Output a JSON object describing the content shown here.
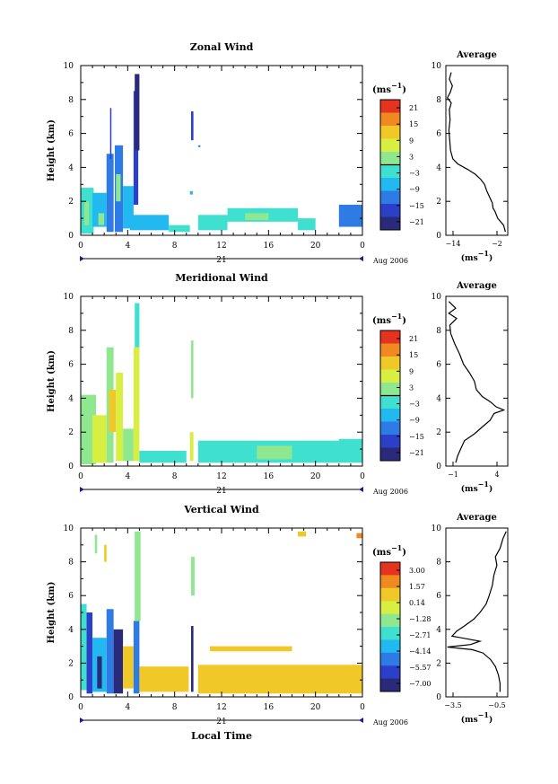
{
  "chart_data": [
    {
      "type": "heatmap",
      "title": "Zonal Wind",
      "ylabel": "Height (km)",
      "ylim": [
        0,
        10
      ],
      "xticks": [
        "0",
        "4",
        "8",
        "12",
        "16",
        "20",
        "0"
      ],
      "yticks": [
        "0",
        "2",
        "4",
        "6",
        "8",
        "10"
      ],
      "date_label": "21",
      "month_label": "Aug 2006",
      "colorbar": {
        "unit_html": "(ms<tspan baseline-shift='super' font-size='8'>−1</tspan>)",
        "ticks": [
          "21",
          "15",
          "9",
          "3",
          "−3",
          "−9",
          "−15",
          "−21"
        ],
        "zero_index": 4
      },
      "average": {
        "title": "Average",
        "xticks": [
          "−14",
          "−2"
        ],
        "xunit": "(ms−1)",
        "yticks": [
          "0",
          "2",
          "4",
          "6",
          "8",
          "10"
        ],
        "xlim": [
          -16,
          0
        ],
        "points": [
          [
            -0.6,
            0.2
          ],
          [
            -1.1,
            0.6
          ],
          [
            -2.6,
            1.0
          ],
          [
            -3.3,
            1.4
          ],
          [
            -3.8,
            1.6
          ],
          [
            -4.0,
            1.9
          ],
          [
            -4.6,
            2.2
          ],
          [
            -5.4,
            2.6
          ],
          [
            -6.0,
            3.0
          ],
          [
            -7.0,
            3.3
          ],
          [
            -8.4,
            3.6
          ],
          [
            -10.5,
            3.9
          ],
          [
            -12.9,
            4.2
          ],
          [
            -14.2,
            4.5
          ],
          [
            -14.8,
            5.0
          ],
          [
            -15.0,
            5.6
          ],
          [
            -15.2,
            6.2
          ],
          [
            -14.9,
            6.8
          ],
          [
            -15.1,
            7.4
          ],
          [
            -14.6,
            7.8
          ],
          [
            -15.6,
            8.1
          ],
          [
            -14.9,
            8.4
          ],
          [
            -14.3,
            8.8
          ],
          [
            -15.1,
            9.2
          ],
          [
            -14.6,
            9.6
          ]
        ]
      },
      "blocks": [
        {
          "t": 0.0,
          "t2": 1.1,
          "h1": 0.1,
          "h2": 2.8,
          "v": -4
        },
        {
          "t": 0.3,
          "t2": 0.7,
          "h1": 0.6,
          "h2": 2.0,
          "v": 2
        },
        {
          "t": 1.0,
          "t2": 2.2,
          "h1": 0.5,
          "h2": 2.5,
          "v": -6
        },
        {
          "t": 1.5,
          "t2": 2.0,
          "h1": 0.6,
          "h2": 1.3,
          "v": 3
        },
        {
          "t": 2.2,
          "t2": 2.8,
          "h1": 0.2,
          "h2": 4.8,
          "v": -9
        },
        {
          "t": 2.5,
          "t2": 2.6,
          "h1": 4.5,
          "h2": 7.5,
          "v": -14
        },
        {
          "t": 2.9,
          "t2": 3.6,
          "h1": 0.2,
          "h2": 5.3,
          "v": -12
        },
        {
          "t": 3.0,
          "t2": 3.4,
          "h1": 2.0,
          "h2": 3.6,
          "v": 4
        },
        {
          "t": 3.6,
          "t2": 4.5,
          "h1": 0.4,
          "h2": 2.9,
          "v": -5
        },
        {
          "t": 4.5,
          "t2": 4.9,
          "h1": 1.8,
          "h2": 8.5,
          "v": -16
        },
        {
          "t": 4.6,
          "t2": 5.0,
          "h1": 5.0,
          "h2": 9.5,
          "v": -18
        },
        {
          "t": 4.2,
          "t2": 7.5,
          "h1": 0.3,
          "h2": 1.2,
          "v": -8
        },
        {
          "t": 7.5,
          "t2": 9.3,
          "h1": 0.2,
          "h2": 0.6,
          "v": -3
        },
        {
          "t": 9.3,
          "t2": 9.55,
          "h1": 2.4,
          "h2": 2.6,
          "v": -7
        },
        {
          "t": 9.4,
          "t2": 9.6,
          "h1": 5.6,
          "h2": 7.3,
          "v": -13
        },
        {
          "t": 10.0,
          "t2": 10.2,
          "h1": 5.2,
          "h2": 5.3,
          "v": -10
        },
        {
          "t": 10.0,
          "t2": 12.5,
          "h1": 0.3,
          "h2": 1.2,
          "v": -2
        },
        {
          "t": 12.5,
          "t2": 18.5,
          "h1": 0.8,
          "h2": 1.6,
          "v": -2
        },
        {
          "t": 14.0,
          "t2": 16.0,
          "h1": 0.9,
          "h2": 1.3,
          "v": 0
        },
        {
          "t": 18.5,
          "t2": 20.0,
          "h1": 0.3,
          "h2": 1.0,
          "v": -3
        },
        {
          "t": 22.0,
          "t2": 24.0,
          "h1": 0.5,
          "h2": 1.8,
          "v": -11
        }
      ]
    },
    {
      "type": "heatmap",
      "title": "Meridional Wind",
      "ylabel": "Height (km)",
      "ylim": [
        0,
        10
      ],
      "xticks": [
        "0",
        "4",
        "8",
        "12",
        "16",
        "20",
        "0"
      ],
      "yticks": [
        "0",
        "2",
        "4",
        "6",
        "8",
        "10"
      ],
      "date_label": "21",
      "month_label": "Aug 2006",
      "colorbar": {
        "unit_html": "(ms<tspan baseline-shift='super' font-size='8'>−1</tspan>)",
        "ticks": [
          "21",
          "15",
          "9",
          "3",
          "−3",
          "−9",
          "−15",
          "−21"
        ],
        "zero_index": 4
      },
      "average": {
        "title": "Average",
        "xticks": [
          "−1",
          "4"
        ],
        "xunit": "(ms−1)",
        "yticks": [
          "0",
          "2",
          "4",
          "6",
          "8",
          "10"
        ],
        "xlim": [
          -1.3,
          5.0
        ],
        "points": [
          [
            -0.3,
            0.2
          ],
          [
            -0.1,
            0.6
          ],
          [
            0.2,
            1.0
          ],
          [
            0.6,
            1.5
          ],
          [
            1.6,
            1.9
          ],
          [
            2.4,
            2.3
          ],
          [
            3.2,
            2.7
          ],
          [
            3.6,
            3.1
          ],
          [
            4.6,
            3.3
          ],
          [
            3.8,
            3.5
          ],
          [
            3.2,
            3.8
          ],
          [
            2.4,
            4.1
          ],
          [
            1.8,
            4.5
          ],
          [
            1.6,
            5.0
          ],
          [
            1.1,
            5.5
          ],
          [
            0.5,
            6.0
          ],
          [
            0.1,
            6.6
          ],
          [
            -0.4,
            7.2
          ],
          [
            -0.8,
            7.8
          ],
          [
            -0.9,
            8.3
          ],
          [
            -0.2,
            8.7
          ],
          [
            -1.0,
            9.0
          ],
          [
            -0.3,
            9.3
          ],
          [
            -1.0,
            9.7
          ]
        ]
      },
      "blocks": [
        {
          "t": 0.0,
          "t2": 1.3,
          "h1": 0.1,
          "h2": 4.2,
          "v": 1
        },
        {
          "t": 1.0,
          "t2": 2.2,
          "h1": 0.2,
          "h2": 3.0,
          "v": 6
        },
        {
          "t": 2.2,
          "t2": 2.8,
          "h1": 0.2,
          "h2": 7.0,
          "v": 3
        },
        {
          "t": 2.4,
          "t2": 3.0,
          "h1": 2.0,
          "h2": 4.5,
          "v": 9
        },
        {
          "t": 3.0,
          "t2": 3.6,
          "h1": 0.3,
          "h2": 5.5,
          "v": 8
        },
        {
          "t": 3.6,
          "t2": 4.5,
          "h1": 0.3,
          "h2": 2.2,
          "v": 4
        },
        {
          "t": 4.5,
          "t2": 5.0,
          "h1": 0.3,
          "h2": 7.0,
          "v": 6
        },
        {
          "t": 4.6,
          "t2": 5.0,
          "h1": 7.0,
          "h2": 9.6,
          "v": -2
        },
        {
          "t": 5.0,
          "t2": 9.0,
          "h1": 0.2,
          "h2": 0.9,
          "v": -1
        },
        {
          "t": 9.3,
          "t2": 9.6,
          "h1": 0.3,
          "h2": 2.0,
          "v": 5
        },
        {
          "t": 9.4,
          "t2": 9.6,
          "h1": 4.0,
          "h2": 7.4,
          "v": 0
        },
        {
          "t": 10.0,
          "t2": 24.0,
          "h1": 0.2,
          "h2": 1.5,
          "v": -1
        },
        {
          "t": 15.0,
          "t2": 18.0,
          "h1": 0.4,
          "h2": 1.2,
          "v": 1
        },
        {
          "t": 22.0,
          "t2": 24.0,
          "h1": 0.6,
          "h2": 1.6,
          "v": -1
        }
      ]
    },
    {
      "type": "heatmap",
      "title": "Vertical Wind",
      "ylabel": "Height (km)",
      "xlabel": "Local Time",
      "ylim": [
        0,
        10
      ],
      "xticks": [
        "0",
        "4",
        "8",
        "12",
        "16",
        "20",
        "0"
      ],
      "yticks": [
        "0",
        "2",
        "4",
        "6",
        "8",
        "10"
      ],
      "date_label": "21",
      "month_label": "Aug 2006",
      "colorbar": {
        "unit_html": "(ms<tspan baseline-shift='super' font-size='8'>−1</tspan>)",
        "ticks": [
          "3.00",
          "1.57",
          "0.14",
          "−1.28",
          "−2.71",
          "−4.14",
          "−5.57",
          "−7.00"
        ],
        "zero_index": -1
      },
      "average": {
        "title": "Average",
        "xticks": [
          "−3.5",
          "−0.5"
        ],
        "xunit": "(ms−1)",
        "yticks": [
          "0",
          "2",
          "4",
          "6",
          "8",
          "10"
        ],
        "xlim": [
          -4.0,
          0.0
        ],
        "points": [
          [
            -0.5,
            0.3
          ],
          [
            -0.5,
            0.8
          ],
          [
            -0.6,
            1.3
          ],
          [
            -0.8,
            1.8
          ],
          [
            -1.1,
            2.2
          ],
          [
            -1.6,
            2.6
          ],
          [
            -2.3,
            2.8
          ],
          [
            -3.9,
            2.95
          ],
          [
            -2.4,
            3.1
          ],
          [
            -1.8,
            3.3
          ],
          [
            -3.6,
            3.6
          ],
          [
            -3.3,
            3.9
          ],
          [
            -2.8,
            4.2
          ],
          [
            -2.2,
            4.6
          ],
          [
            -1.8,
            5.0
          ],
          [
            -1.4,
            5.5
          ],
          [
            -1.2,
            6.0
          ],
          [
            -1.0,
            6.6
          ],
          [
            -0.9,
            7.2
          ],
          [
            -0.7,
            7.8
          ],
          [
            -0.8,
            8.3
          ],
          [
            -0.5,
            8.8
          ],
          [
            -0.3,
            9.4
          ],
          [
            -0.1,
            9.8
          ]
        ]
      },
      "blocks": [
        {
          "t": 0.0,
          "t2": 0.5,
          "h1": 0.4,
          "h2": 5.5,
          "v": -3.0
        },
        {
          "t": 0.5,
          "t2": 1.0,
          "h1": 0.2,
          "h2": 5.0,
          "v": -5.5
        },
        {
          "t": 1.0,
          "t2": 2.2,
          "h1": 0.3,
          "h2": 3.5,
          "v": -4.0
        },
        {
          "t": 1.4,
          "t2": 1.8,
          "h1": 0.5,
          "h2": 2.4,
          "v": -6.5
        },
        {
          "t": 2.2,
          "t2": 2.8,
          "h1": 0.2,
          "h2": 5.2,
          "v": -5.0
        },
        {
          "t": 2.8,
          "t2": 3.6,
          "h1": 0.2,
          "h2": 4.0,
          "v": -6.5
        },
        {
          "t": 3.6,
          "t2": 4.5,
          "h1": 0.5,
          "h2": 3.0,
          "v": 0.0
        },
        {
          "t": 4.5,
          "t2": 5.0,
          "h1": 0.2,
          "h2": 4.5,
          "v": -5.0
        },
        {
          "t": 4.6,
          "t2": 5.1,
          "h1": 4.5,
          "h2": 9.8,
          "v": -1.8
        },
        {
          "t": 1.2,
          "t2": 1.4,
          "h1": 8.5,
          "h2": 9.6,
          "v": -1.5
        },
        {
          "t": 2.0,
          "t2": 2.2,
          "h1": 8.0,
          "h2": 9.0,
          "v": 0.5
        },
        {
          "t": 5.0,
          "t2": 9.2,
          "h1": 0.3,
          "h2": 1.8,
          "v": 0.3
        },
        {
          "t": 9.4,
          "t2": 9.6,
          "h1": 0.3,
          "h2": 4.2,
          "v": -7.0
        },
        {
          "t": 9.4,
          "t2": 9.7,
          "h1": 6.0,
          "h2": 8.3,
          "v": -1.5
        },
        {
          "t": 10.0,
          "t2": 24.0,
          "h1": 0.2,
          "h2": 1.9,
          "v": 0.4
        },
        {
          "t": 11.0,
          "t2": 18.0,
          "h1": 2.7,
          "h2": 3.0,
          "v": 0.2
        },
        {
          "t": 18.5,
          "t2": 19.2,
          "h1": 9.5,
          "h2": 9.8,
          "v": 0.8
        },
        {
          "t": 23.5,
          "t2": 24.0,
          "h1": 9.4,
          "h2": 9.7,
          "v": 1.2
        }
      ]
    }
  ],
  "colors": {
    "scale": [
      "#2a2a7a",
      "#2c3fc8",
      "#2e7be6",
      "#22b8f0",
      "#3fe0d0",
      "#8fe890",
      "#d8ee40",
      "#f0c828",
      "#f08a20",
      "#e43420"
    ]
  }
}
